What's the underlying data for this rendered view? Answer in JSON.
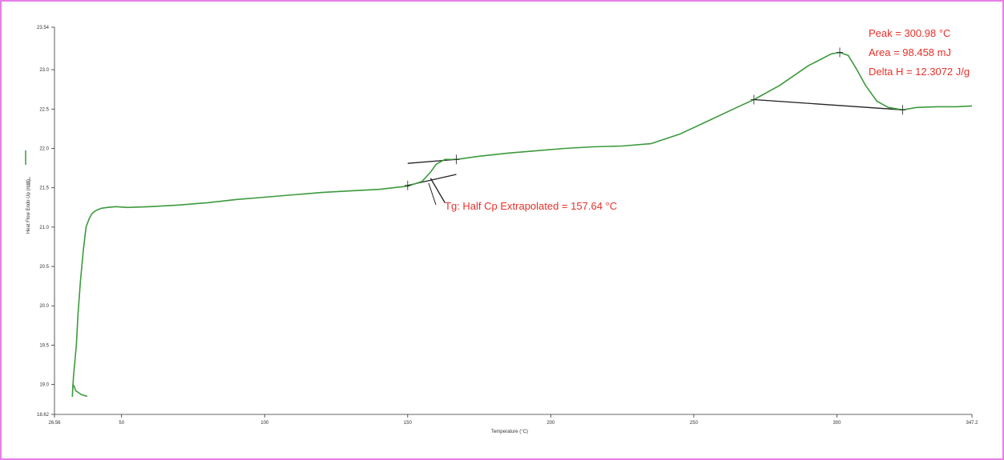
{
  "colors": {
    "frame": "#e67ee8",
    "curve": "#3c9a3c",
    "construction": "#222222",
    "annotation": "#e8312a",
    "axis": "#333333"
  },
  "chart_data": {
    "type": "line",
    "title": "",
    "xlabel": "Temperature (°C)",
    "ylabel": "Heat Flow Endo Up (mW)",
    "xlim": [
      26.56,
      347.2
    ],
    "ylim": [
      18.62,
      23.54
    ],
    "x_ticks": [
      26.56,
      50,
      100,
      150,
      200,
      250,
      300,
      347.2
    ],
    "x_tick_labels": [
      "26.56",
      "50",
      "100",
      "150",
      "200",
      "250",
      "300",
      "347.2"
    ],
    "y_ticks": [
      18.62,
      19.0,
      19.5,
      20.0,
      20.5,
      21.0,
      21.5,
      22.0,
      22.5,
      23.0,
      23.54
    ],
    "y_tick_labels": [
      "18.62",
      "19.0",
      "19.5",
      "20.0",
      "20.5",
      "21.0",
      "21.5",
      "22.0",
      "22.5",
      "23.0",
      "23.54"
    ],
    "grid": false,
    "series": [
      {
        "x": [
          38,
          36,
          34,
          33.4,
          33.0,
          32.8,
          33.2,
          34.2,
          34.8,
          35.6,
          36.6,
          37.6,
          38.6,
          39.6,
          40.6,
          41.6,
          43,
          45,
          48,
          52,
          60,
          70,
          80,
          90,
          100,
          110,
          120,
          130,
          140,
          150,
          155,
          158,
          160,
          163,
          167,
          175,
          185,
          195,
          205,
          215,
          225,
          235,
          245,
          255,
          265,
          271,
          280,
          290,
          298,
          301,
          304,
          307,
          310,
          314,
          318,
          323,
          328,
          335,
          342,
          347.2
        ],
        "y": [
          18.85,
          18.87,
          18.92,
          18.98,
          19.0,
          18.85,
          19.1,
          19.5,
          19.9,
          20.3,
          20.7,
          21.0,
          21.1,
          21.17,
          21.2,
          21.22,
          21.24,
          21.25,
          21.26,
          21.25,
          21.26,
          21.28,
          21.31,
          21.35,
          21.38,
          21.41,
          21.44,
          21.46,
          21.48,
          21.52,
          21.58,
          21.7,
          21.8,
          21.86,
          21.86,
          21.9,
          21.94,
          21.97,
          22.0,
          22.02,
          22.03,
          22.06,
          22.18,
          22.35,
          22.52,
          22.62,
          22.8,
          23.05,
          23.2,
          23.22,
          23.18,
          23.0,
          22.8,
          22.6,
          22.52,
          22.49,
          22.52,
          22.53,
          22.53,
          22.54
        ]
      }
    ],
    "construction_lines": [
      {
        "x": [
          150,
          167
        ],
        "y": [
          21.53,
          21.67
        ]
      },
      {
        "x": [
          150,
          167
        ],
        "y": [
          21.81,
          21.86
        ]
      },
      {
        "x": [
          158,
          163
        ],
        "y": [
          21.62,
          21.31
        ]
      },
      {
        "x": [
          271,
          323
        ],
        "y": [
          22.62,
          22.49
        ]
      }
    ],
    "markers": [
      {
        "x": 150,
        "y": 21.53
      },
      {
        "x": 167,
        "y": 21.86
      },
      {
        "x": 271,
        "y": 22.62
      },
      {
        "x": 301,
        "y": 23.22
      },
      {
        "x": 323,
        "y": 22.49
      }
    ],
    "annotations": [
      "Peak = 300.98 °C",
      "Area = 98.458 mJ",
      "Delta H = 12.3072 J/g",
      "Tg: Half Cp Extrapolated = 157.64 °C"
    ]
  }
}
